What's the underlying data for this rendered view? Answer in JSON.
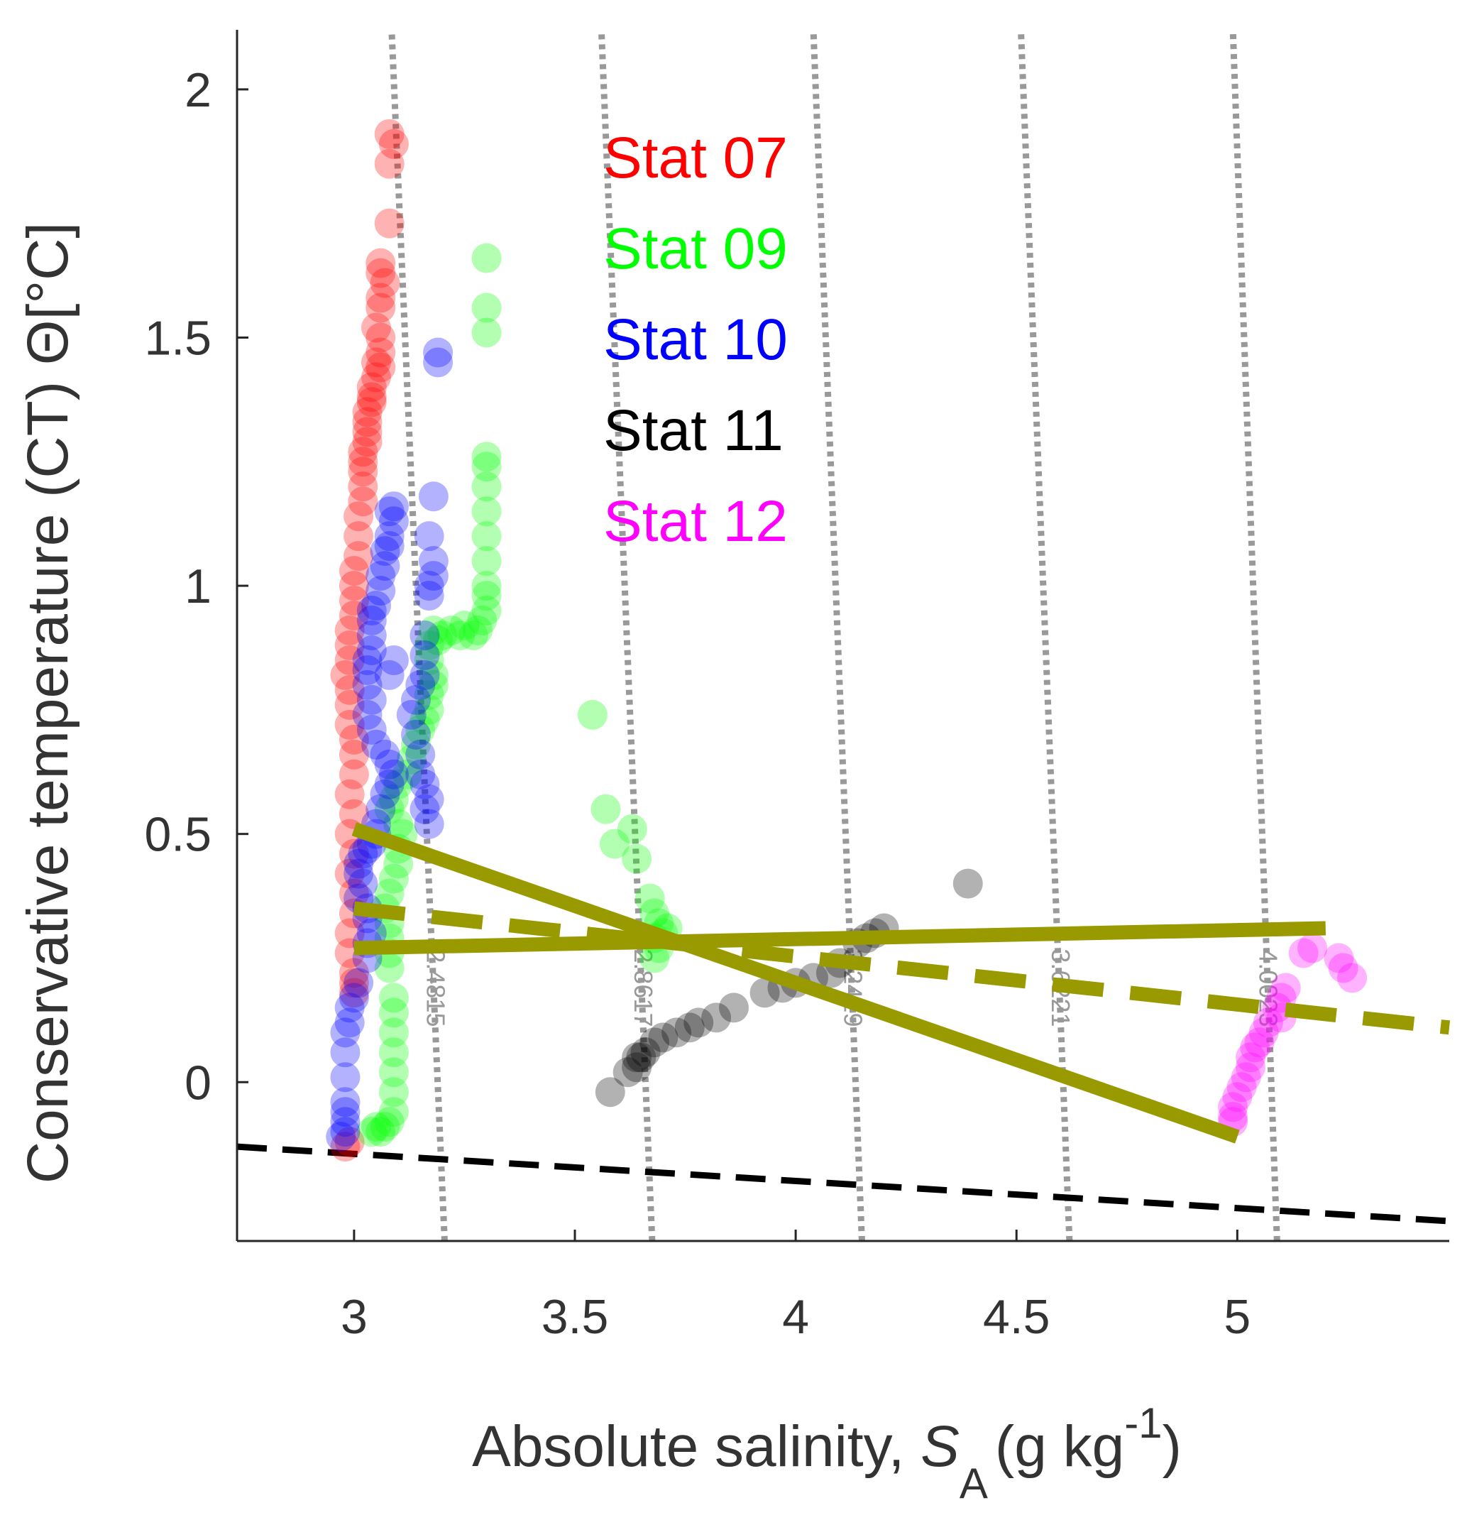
{
  "chart_data": {
    "type": "scatter",
    "title": "",
    "xlabel": {
      "main": "Absolute salinity, ",
      "symbol": "S",
      "subscript": "A",
      "open": "(g kg",
      "superscript": "-1",
      "close": ")"
    },
    "ylabel": "Conservative temperature (CT)   Θ[°C]",
    "xlim": [
      2.735,
      5.48
    ],
    "ylim": [
      -0.32,
      2.12
    ],
    "x_ticks": [
      3,
      3.5,
      4,
      4.5,
      5
    ],
    "x_tick_labels": [
      "3",
      "3.5",
      "4",
      "4.5",
      "5"
    ],
    "y_ticks": [
      0,
      0.5,
      1,
      1.5,
      2
    ],
    "y_tick_labels": [
      "0",
      "0.5",
      "1",
      "1.5",
      "2"
    ],
    "grid": false,
    "legend_position": "top-center",
    "series": [
      {
        "name": "Stat 07",
        "color": "#ff0000",
        "points": [
          [
            3.08,
            1.91
          ],
          [
            3.09,
            1.89
          ],
          [
            3.08,
            1.85
          ],
          [
            3.08,
            1.73
          ],
          [
            3.06,
            1.65
          ],
          [
            3.06,
            1.63
          ],
          [
            3.07,
            1.61
          ],
          [
            3.06,
            1.58
          ],
          [
            3.06,
            1.56
          ],
          [
            3.05,
            1.52
          ],
          [
            3.06,
            1.5
          ],
          [
            3.06,
            1.47
          ],
          [
            3.05,
            1.45
          ],
          [
            3.06,
            1.44
          ],
          [
            3.05,
            1.42
          ],
          [
            3.04,
            1.4
          ],
          [
            3.04,
            1.38
          ],
          [
            3.04,
            1.37
          ],
          [
            3.03,
            1.35
          ],
          [
            3.03,
            1.33
          ],
          [
            3.03,
            1.31
          ],
          [
            3.03,
            1.29
          ],
          [
            3.02,
            1.27
          ],
          [
            3.02,
            1.25
          ],
          [
            3.02,
            1.23
          ],
          [
            3.02,
            1.2
          ],
          [
            3.02,
            1.17
          ],
          [
            3.01,
            1.14
          ],
          [
            3.01,
            1.1
          ],
          [
            3.01,
            1.06
          ],
          [
            3.0,
            1.03
          ],
          [
            3.0,
            1.0
          ],
          [
            3.0,
            0.97
          ],
          [
            3.0,
            0.94
          ],
          [
            2.99,
            0.91
          ],
          [
            2.99,
            0.88
          ],
          [
            2.99,
            0.85
          ],
          [
            2.98,
            0.82
          ],
          [
            2.99,
            0.79
          ],
          [
            2.99,
            0.76
          ],
          [
            2.99,
            0.72
          ],
          [
            3.0,
            0.69
          ],
          [
            3.0,
            0.66
          ],
          [
            3.0,
            0.62
          ],
          [
            2.99,
            0.58
          ],
          [
            3.0,
            0.54
          ],
          [
            2.99,
            0.5
          ],
          [
            3.0,
            0.46
          ],
          [
            2.99,
            0.42
          ],
          [
            3.0,
            0.38
          ],
          [
            3.0,
            0.34
          ],
          [
            2.99,
            0.3
          ],
          [
            2.99,
            0.26
          ],
          [
            3.0,
            0.22
          ],
          [
            3.0,
            0.2
          ],
          [
            3.0,
            0.18
          ],
          [
            2.99,
            -0.12
          ],
          [
            2.98,
            -0.13
          ]
        ]
      },
      {
        "name": "Stat 09",
        "color": "#00ff00",
        "points": [
          [
            3.3,
            1.66
          ],
          [
            3.3,
            1.56
          ],
          [
            3.3,
            1.51
          ],
          [
            3.3,
            1.26
          ],
          [
            3.3,
            1.24
          ],
          [
            3.3,
            1.2
          ],
          [
            3.3,
            1.15
          ],
          [
            3.3,
            1.1
          ],
          [
            3.3,
            1.05
          ],
          [
            3.3,
            1.0
          ],
          [
            3.3,
            0.98
          ],
          [
            3.3,
            0.95
          ],
          [
            3.29,
            0.93
          ],
          [
            3.28,
            0.91
          ],
          [
            3.27,
            0.9
          ],
          [
            3.25,
            0.92
          ],
          [
            3.24,
            0.9
          ],
          [
            3.22,
            0.91
          ],
          [
            3.2,
            0.9
          ],
          [
            3.19,
            0.89
          ],
          [
            3.18,
            0.91
          ],
          [
            3.17,
            0.88
          ],
          [
            3.17,
            0.85
          ],
          [
            3.18,
            0.82
          ],
          [
            3.18,
            0.8
          ],
          [
            3.17,
            0.78
          ],
          [
            3.17,
            0.75
          ],
          [
            3.16,
            0.73
          ],
          [
            3.15,
            0.71
          ],
          [
            3.14,
            0.68
          ],
          [
            3.13,
            0.65
          ],
          [
            3.12,
            0.62
          ],
          [
            3.1,
            0.6
          ],
          [
            3.09,
            0.57
          ],
          [
            3.08,
            0.55
          ],
          [
            3.1,
            0.52
          ],
          [
            3.11,
            0.5
          ],
          [
            3.1,
            0.47
          ],
          [
            3.1,
            0.44
          ],
          [
            3.09,
            0.41
          ],
          [
            3.08,
            0.38
          ],
          [
            3.07,
            0.35
          ],
          [
            3.08,
            0.32
          ],
          [
            3.08,
            0.29
          ],
          [
            3.08,
            0.26
          ],
          [
            3.08,
            0.23
          ],
          [
            3.09,
            0.17
          ],
          [
            3.09,
            0.14
          ],
          [
            3.09,
            0.1
          ],
          [
            3.09,
            0.06
          ],
          [
            3.09,
            0.02
          ],
          [
            3.09,
            -0.02
          ],
          [
            3.09,
            -0.06
          ],
          [
            3.08,
            -0.08
          ],
          [
            3.07,
            -0.09
          ],
          [
            3.05,
            -0.09
          ],
          [
            3.04,
            -0.1
          ],
          [
            3.06,
            -0.1
          ],
          [
            3.54,
            0.74
          ],
          [
            3.57,
            0.55
          ],
          [
            3.63,
            0.51
          ],
          [
            3.59,
            0.48
          ],
          [
            3.64,
            0.45
          ],
          [
            3.67,
            0.37
          ],
          [
            3.68,
            0.34
          ],
          [
            3.69,
            0.32
          ],
          [
            3.71,
            0.31
          ],
          [
            3.7,
            0.3
          ],
          [
            3.68,
            0.29
          ],
          [
            3.69,
            0.27
          ],
          [
            3.68,
            0.25
          ]
        ]
      },
      {
        "name": "Stat 10",
        "color": "#0000ff",
        "points": [
          [
            3.19,
            1.47
          ],
          [
            3.19,
            1.45
          ],
          [
            3.18,
            1.18
          ],
          [
            3.17,
            1.1
          ],
          [
            3.18,
            1.05
          ],
          [
            3.18,
            1.02
          ],
          [
            3.17,
            1.0
          ],
          [
            3.17,
            0.98
          ],
          [
            3.16,
            0.9
          ],
          [
            3.16,
            0.86
          ],
          [
            3.16,
            0.82
          ],
          [
            3.15,
            0.8
          ],
          [
            3.14,
            0.77
          ],
          [
            3.13,
            0.74
          ],
          [
            3.14,
            0.7
          ],
          [
            3.15,
            0.66
          ],
          [
            3.15,
            0.62
          ],
          [
            3.16,
            0.6
          ],
          [
            3.17,
            0.57
          ],
          [
            3.16,
            0.55
          ],
          [
            3.17,
            0.52
          ],
          [
            3.09,
            1.16
          ],
          [
            3.08,
            1.15
          ],
          [
            3.09,
            1.13
          ],
          [
            3.08,
            1.1
          ],
          [
            3.08,
            1.08
          ],
          [
            3.07,
            1.07
          ],
          [
            3.07,
            1.04
          ],
          [
            3.06,
            1.02
          ],
          [
            3.06,
            0.99
          ],
          [
            3.05,
            0.96
          ],
          [
            3.04,
            0.95
          ],
          [
            3.04,
            0.93
          ],
          [
            3.04,
            0.9
          ],
          [
            3.04,
            0.87
          ],
          [
            3.03,
            0.85
          ],
          [
            3.03,
            0.83
          ],
          [
            3.08,
            0.82
          ],
          [
            3.09,
            0.85
          ],
          [
            3.03,
            0.8
          ],
          [
            3.04,
            0.77
          ],
          [
            3.03,
            0.74
          ],
          [
            3.04,
            0.71
          ],
          [
            3.05,
            0.68
          ],
          [
            3.07,
            0.66
          ],
          [
            3.08,
            0.64
          ],
          [
            3.09,
            0.62
          ],
          [
            3.08,
            0.6
          ],
          [
            3.07,
            0.58
          ],
          [
            3.06,
            0.55
          ],
          [
            3.05,
            0.52
          ],
          [
            3.05,
            0.5
          ],
          [
            3.04,
            0.48
          ],
          [
            3.03,
            0.47
          ],
          [
            3.02,
            0.46
          ],
          [
            3.01,
            0.44
          ],
          [
            3.01,
            0.42
          ],
          [
            3.02,
            0.4
          ],
          [
            3.01,
            0.37
          ],
          [
            3.03,
            0.35
          ],
          [
            3.03,
            0.33
          ],
          [
            3.04,
            0.3
          ],
          [
            3.03,
            0.28
          ],
          [
            3.03,
            0.25
          ],
          [
            3.01,
            0.2
          ],
          [
            3.0,
            0.17
          ],
          [
            2.99,
            0.15
          ],
          [
            2.99,
            0.12
          ],
          [
            2.98,
            0.1
          ],
          [
            2.98,
            0.06
          ],
          [
            2.98,
            0.01
          ],
          [
            2.98,
            -0.04
          ],
          [
            2.98,
            -0.06
          ],
          [
            2.98,
            -0.08
          ],
          [
            2.98,
            -0.1
          ],
          [
            2.97,
            -0.11
          ]
        ]
      },
      {
        "name": "Stat 11",
        "color": "#000000",
        "points": [
          [
            4.39,
            0.4
          ],
          [
            4.2,
            0.31
          ],
          [
            4.18,
            0.3
          ],
          [
            4.16,
            0.29
          ],
          [
            4.14,
            0.28
          ],
          [
            4.1,
            0.24
          ],
          [
            4.08,
            0.22
          ],
          [
            4.04,
            0.21
          ],
          [
            4.0,
            0.2
          ],
          [
            3.97,
            0.19
          ],
          [
            3.93,
            0.18
          ],
          [
            3.86,
            0.15
          ],
          [
            3.82,
            0.13
          ],
          [
            3.78,
            0.12
          ],
          [
            3.76,
            0.11
          ],
          [
            3.73,
            0.1
          ],
          [
            3.7,
            0.09
          ],
          [
            3.68,
            0.08
          ],
          [
            3.66,
            0.06
          ],
          [
            3.65,
            0.05
          ],
          [
            3.64,
            0.05
          ],
          [
            3.64,
            0.03
          ],
          [
            3.62,
            0.02
          ],
          [
            3.58,
            -0.02
          ]
        ]
      },
      {
        "name": "Stat 12",
        "color": "#ff00ff",
        "points": [
          [
            5.17,
            0.27
          ],
          [
            5.23,
            0.25
          ],
          [
            5.24,
            0.23
          ],
          [
            5.26,
            0.21
          ],
          [
            5.15,
            0.26
          ],
          [
            5.11,
            0.19
          ],
          [
            5.1,
            0.17
          ],
          [
            5.09,
            0.15
          ],
          [
            5.1,
            0.13
          ],
          [
            5.07,
            0.12
          ],
          [
            5.06,
            0.1
          ],
          [
            5.05,
            0.08
          ],
          [
            5.04,
            0.07
          ],
          [
            5.03,
            0.05
          ],
          [
            5.03,
            0.03
          ],
          [
            5.02,
            0.01
          ],
          [
            5.01,
            -0.01
          ],
          [
            5.0,
            -0.03
          ],
          [
            4.99,
            -0.05
          ],
          [
            4.99,
            -0.07
          ],
          [
            4.99,
            -0.08
          ]
        ]
      }
    ],
    "isopycnals": [
      {
        "label": "2.4815",
        "x_bottom": 3.205,
        "x_top": 3.085,
        "label_x": 3.165,
        "label_y": 0.19
      },
      {
        "label": "2.8617",
        "x_bottom": 3.675,
        "x_top": 3.56,
        "label_x": 3.635,
        "label_y": 0.19
      },
      {
        "label": "3.2419",
        "x_bottom": 4.15,
        "x_top": 4.04,
        "label_x": 4.11,
        "label_y": 0.19
      },
      {
        "label": "3.6221",
        "x_bottom": 4.62,
        "x_top": 4.51,
        "label_x": 4.58,
        "label_y": 0.19
      },
      {
        "label": "4.0023",
        "x_bottom": 5.09,
        "x_top": 4.99,
        "label_x": 5.05,
        "label_y": 0.19
      }
    ],
    "freezing_line": {
      "x": [
        2.735,
        5.48
      ],
      "y": [
        -0.13,
        -0.28
      ]
    },
    "mixing_lines_solid": [
      {
        "x": [
          3.0,
          5.0
        ],
        "y": [
          0.51,
          -0.11
        ]
      },
      {
        "x": [
          3.0,
          5.2
        ],
        "y": [
          0.27,
          0.31
        ]
      }
    ],
    "mixing_line_dashed": {
      "x": [
        3.0,
        5.48
      ],
      "y": [
        0.35,
        0.11
      ]
    }
  }
}
